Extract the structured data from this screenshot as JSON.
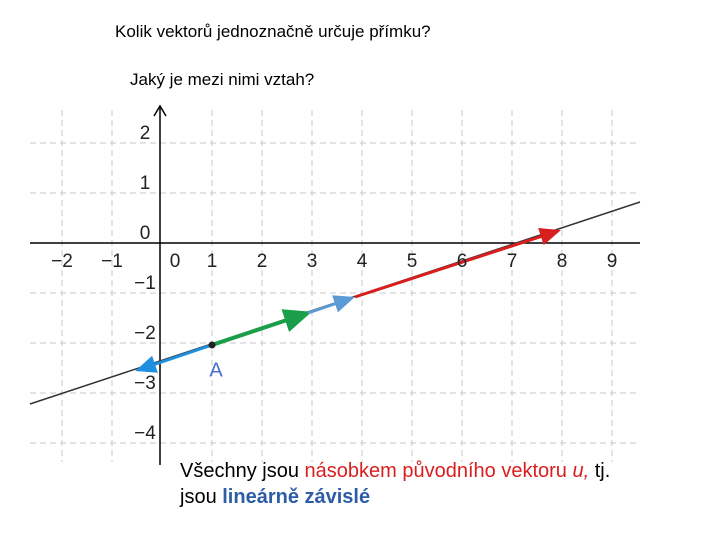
{
  "question": "Kolik vektorů jednoznačně určuje přímku?",
  "subquestion": "Jaký je mezi nimi vztah?",
  "graph": {
    "x_labels": [
      "−2",
      "−1",
      "0",
      "1",
      "2",
      "3",
      "4",
      "5",
      "6",
      "7",
      "8",
      "9"
    ],
    "y_labels": [
      "2",
      "1",
      "0",
      "−1",
      "−2",
      "−3",
      "−4"
    ],
    "point_label": "A"
  },
  "conclusion": {
    "line1": [
      "Všechny jsou ",
      "násobkem původního vektoru ",
      "u,",
      " tj."
    ],
    "line2": [
      "jsou ",
      "lineárně závislé"
    ]
  }
}
